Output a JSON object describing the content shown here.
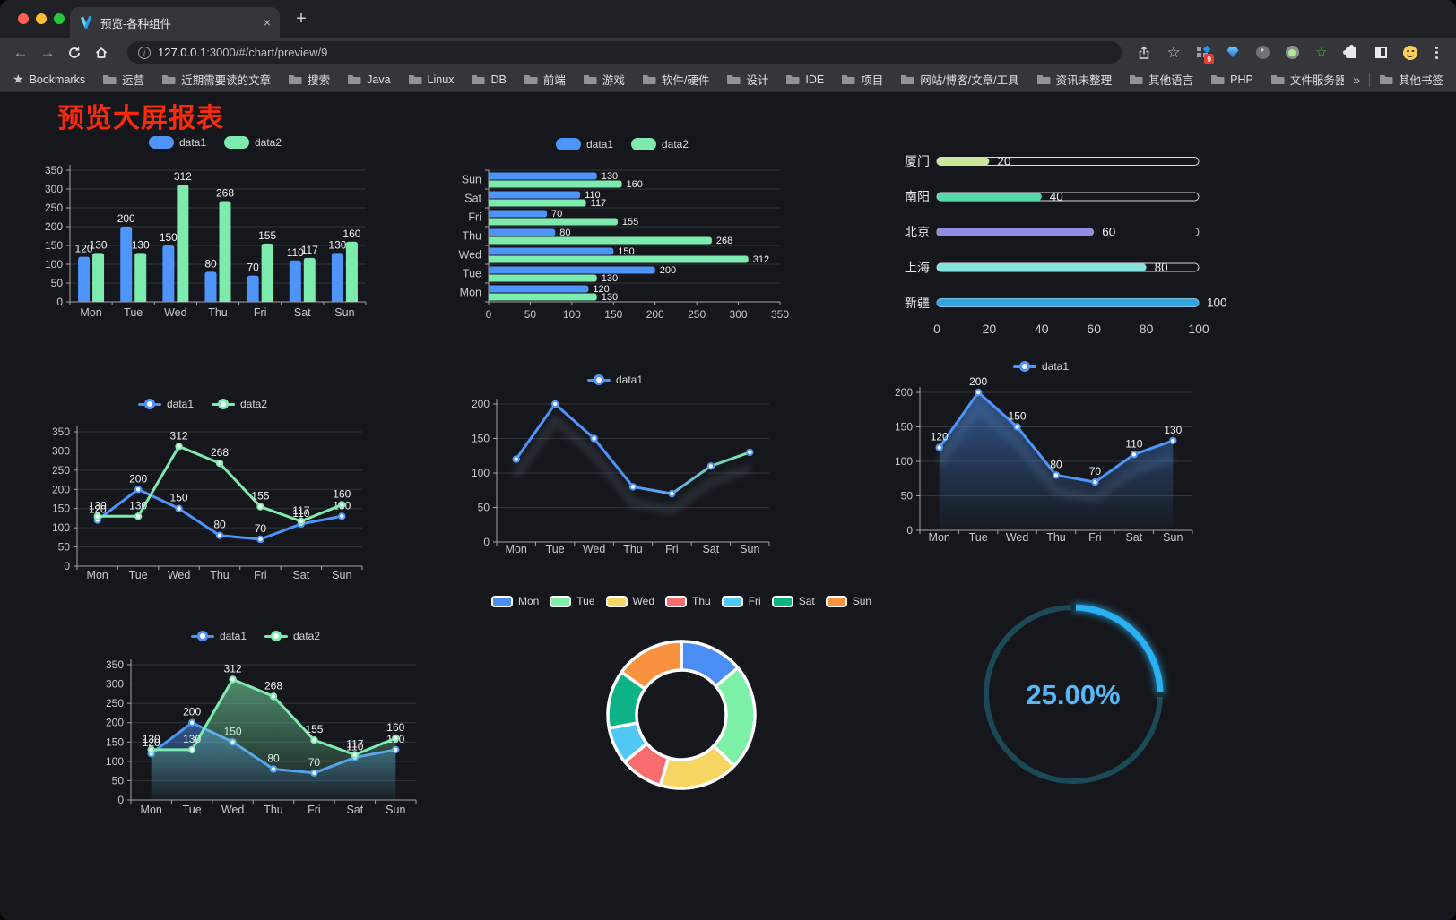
{
  "browser": {
    "tab": {
      "title": "预览-各种组件"
    },
    "icons": {
      "close": "×",
      "new_tab": "+",
      "back": "←",
      "forward": "→",
      "star": "☆",
      "info_letter": "i"
    },
    "url": {
      "host": "127.0.0.1",
      "rest": ":3000/#/chart/preview/9"
    },
    "extensions": {
      "badge": "9"
    },
    "bookmarks": {
      "label": "Bookmarks",
      "folders": [
        "运营",
        "近期需要读的文章",
        "搜索",
        "Java",
        "Linux",
        "DB",
        "前端",
        "游戏",
        "软件/硬件",
        "设计",
        "IDE",
        "项目",
        "网站/博客/文章/工具",
        "资讯未整理",
        "其他语言",
        "PHP",
        "文件服务器"
      ],
      "overflow_icon": "»",
      "other_label": "其他书签"
    }
  },
  "page": {
    "title": "预览大屏报表",
    "title_color": "#fb2a0c"
  },
  "chart_data": [
    {
      "id": "bar-grouped",
      "type": "bar",
      "categories": [
        "Mon",
        "Tue",
        "Wed",
        "Thu",
        "Fri",
        "Sat",
        "Sun"
      ],
      "series": [
        {
          "name": "data1",
          "color": "#4d95fb",
          "values": [
            120,
            200,
            150,
            80,
            70,
            110,
            130
          ]
        },
        {
          "name": "data2",
          "color": "#7debad",
          "values": [
            130,
            130,
            312,
            268,
            155,
            117,
            160
          ]
        }
      ],
      "ylim": [
        0,
        350
      ],
      "ystep": 50,
      "value_labels": true,
      "legend_position": "top"
    },
    {
      "id": "bar-horizontal",
      "type": "hbar",
      "categories": [
        "Mon",
        "Tue",
        "Wed",
        "Thu",
        "Fri",
        "Sat",
        "Sun"
      ],
      "reverse_display": true,
      "series": [
        {
          "name": "data1",
          "color": "#4d95fb",
          "values": [
            120,
            200,
            150,
            80,
            70,
            110,
            130
          ]
        },
        {
          "name": "data2",
          "color": "#7debad",
          "values": [
            130,
            130,
            312,
            268,
            155,
            117,
            160
          ]
        }
      ],
      "xlim": [
        0,
        350
      ],
      "xstep": 50,
      "value_labels": true,
      "legend_position": "top"
    },
    {
      "id": "progress-cities",
      "type": "progress",
      "items": [
        {
          "label": "厦门",
          "value": 20,
          "color": "#c9e79a"
        },
        {
          "label": "南阳",
          "value": 40,
          "color": "#55dbab"
        },
        {
          "label": "北京",
          "value": 60,
          "color": "#928ee2"
        },
        {
          "label": "上海",
          "value": 80,
          "color": "#85e2dd"
        },
        {
          "label": "新疆",
          "value": 100,
          "color": "#2ea6e0"
        }
      ],
      "xlim": [
        0,
        100
      ],
      "xticks": [
        0,
        20,
        40,
        60,
        80,
        100
      ]
    },
    {
      "id": "line-two-series",
      "type": "line",
      "categories": [
        "Mon",
        "Tue",
        "Wed",
        "Thu",
        "Fri",
        "Sat",
        "Sun"
      ],
      "series": [
        {
          "name": "data1",
          "color": "#4d95fb",
          "values": [
            120,
            200,
            150,
            80,
            70,
            110,
            130
          ]
        },
        {
          "name": "data2",
          "color": "#7debad",
          "values": [
            130,
            130,
            312,
            268,
            155,
            117,
            160
          ]
        }
      ],
      "ylim": [
        0,
        350
      ],
      "ystep": 50,
      "value_labels": true,
      "legend_position": "top"
    },
    {
      "id": "line-gradient",
      "type": "line",
      "categories": [
        "Mon",
        "Tue",
        "Wed",
        "Thu",
        "Fri",
        "Sat",
        "Sun"
      ],
      "series": [
        {
          "name": "data1",
          "color": "#4d95fb",
          "gradient": [
            "#4d95fb",
            "#7debad"
          ],
          "values": [
            120,
            200,
            150,
            80,
            70,
            110,
            130
          ]
        }
      ],
      "ylim": [
        0,
        200
      ],
      "ystep": 50,
      "value_labels": false,
      "shadow": true,
      "legend_position": "top"
    },
    {
      "id": "line-area-labeled",
      "type": "line",
      "categories": [
        "Mon",
        "Tue",
        "Wed",
        "Thu",
        "Fri",
        "Sat",
        "Sun"
      ],
      "series": [
        {
          "name": "data1",
          "color": "#4d95fb",
          "area": true,
          "values": [
            120,
            200,
            150,
            80,
            70,
            110,
            130
          ]
        }
      ],
      "ylim": [
        0,
        200
      ],
      "ystep": 50,
      "value_labels": true,
      "shadow": true,
      "legend_position": "top"
    },
    {
      "id": "area-two-series",
      "type": "line",
      "categories": [
        "Mon",
        "Tue",
        "Wed",
        "Thu",
        "Fri",
        "Sat",
        "Sun"
      ],
      "series": [
        {
          "name": "data1",
          "color": "#4d95fb",
          "area": true,
          "values": [
            120,
            200,
            150,
            80,
            70,
            110,
            130
          ]
        },
        {
          "name": "data2",
          "color": "#7debad",
          "area": true,
          "area_opacity": 0.55,
          "values": [
            130,
            130,
            312,
            268,
            155,
            117,
            160
          ]
        }
      ],
      "ylim": [
        0,
        350
      ],
      "ystep": 50,
      "value_labels": true,
      "legend_position": "top"
    },
    {
      "id": "donut-week",
      "type": "donut",
      "items": [
        {
          "label": "Mon",
          "value": 120,
          "color": "#4a8ef5"
        },
        {
          "label": "Tue",
          "value": 200,
          "color": "#7df0a8"
        },
        {
          "label": "Wed",
          "value": 150,
          "color": "#f7d664"
        },
        {
          "label": "Thu",
          "value": 80,
          "color": "#f96c6e"
        },
        {
          "label": "Fri",
          "value": 70,
          "color": "#4fc9f3"
        },
        {
          "label": "Sat",
          "value": 110,
          "color": "#0db387"
        },
        {
          "label": "Sun",
          "value": 130,
          "color": "#f8923f"
        }
      ],
      "border_color": "#ffffff",
      "legend_position": "top"
    },
    {
      "id": "gauge-percent",
      "type": "gauge",
      "value": 25,
      "max": 100,
      "label": "25.00%",
      "track_color": "#1c4956",
      "arc_color": "#29b1f4",
      "text_color": "#56b8f4"
    }
  ]
}
